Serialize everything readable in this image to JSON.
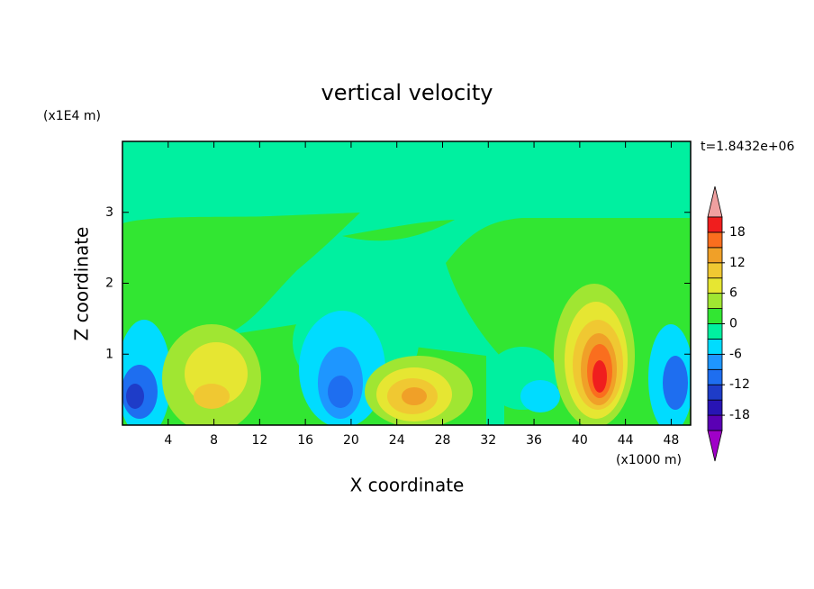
{
  "chart_data": {
    "type": "contour",
    "title": "vertical velocity",
    "annotation": "t=1.8432e+06",
    "x_label": "X coordinate",
    "y_label": "Z coordinate",
    "x_unit": "(x1000 m)",
    "y_unit": "(x1E4 m)",
    "xlim": [
      0,
      49.7
    ],
    "xticks": [
      4,
      8,
      12,
      16,
      20,
      24,
      28,
      32,
      36,
      40,
      44,
      48
    ],
    "ylim": [
      0,
      4
    ],
    "yticks": [
      1,
      2,
      3
    ],
    "colorbar": {
      "lim": [
        -21,
        21
      ],
      "ticks": [
        -18,
        -12,
        -6,
        0,
        6,
        12,
        18
      ],
      "colors": [
        "#a000c8",
        "#5a00b4",
        "#2814b4",
        "#1e3cc8",
        "#1e6ef0",
        "#1e96ff",
        "#00dcff",
        "#00f0a0",
        "#32e632",
        "#a0e632",
        "#e6e632",
        "#f0c832",
        "#f0a028",
        "#fa6e1e",
        "#f01e1e",
        "#f0a0a0"
      ]
    }
  }
}
